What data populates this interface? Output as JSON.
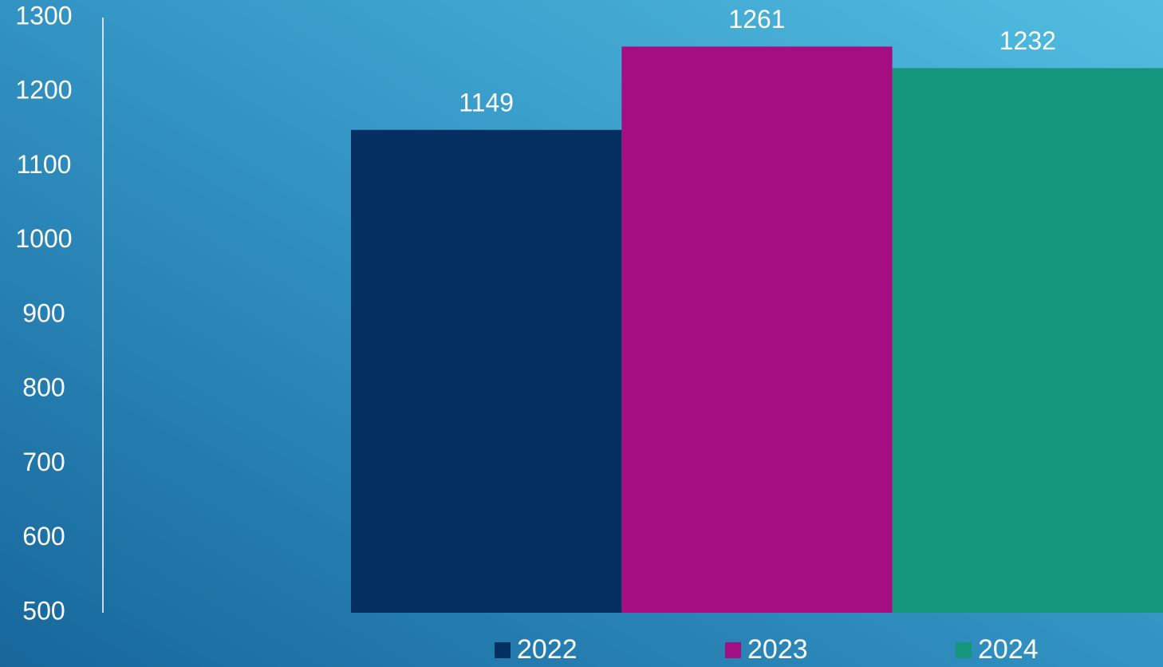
{
  "chart_data": {
    "type": "bar",
    "categories": [
      null
    ],
    "series": [
      {
        "name": "2022",
        "color": "#052f60",
        "values": [
          1149
        ]
      },
      {
        "name": "2023",
        "color": "#a50e82",
        "values": [
          1261
        ]
      },
      {
        "name": "2024",
        "color": "#14967c",
        "values": [
          1232
        ]
      }
    ],
    "ylim": [
      500,
      1300
    ],
    "yticks": [
      500,
      600,
      700,
      800,
      900,
      1000,
      1100,
      1200,
      1300
    ],
    "grid": false,
    "legend": "bottom"
  }
}
